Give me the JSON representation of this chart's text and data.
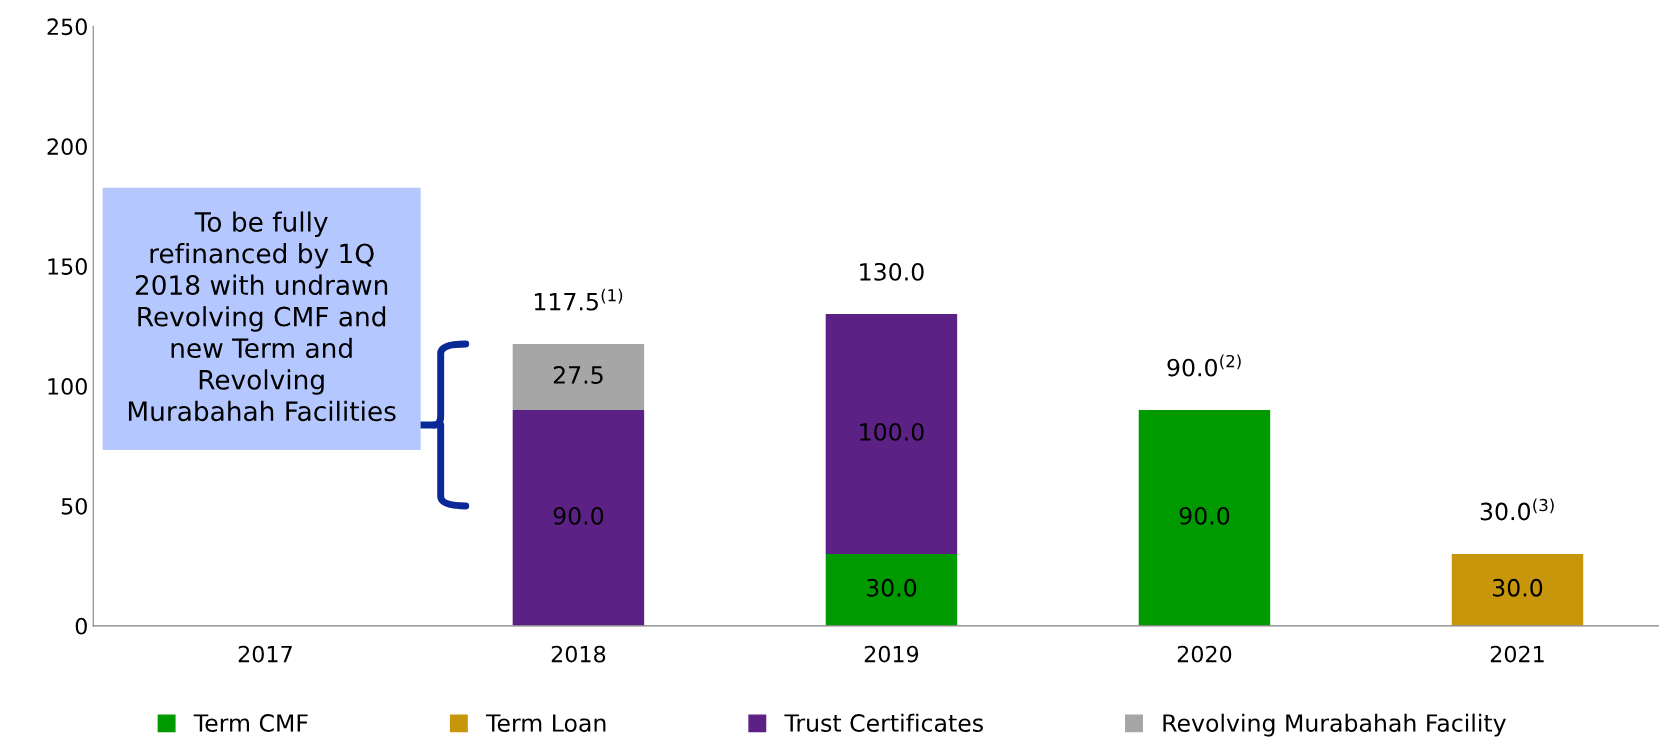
{
  "chart_data": {
    "type": "bar",
    "stacked": true,
    "categories": [
      "2017",
      "2018",
      "2019",
      "2020",
      "2021"
    ],
    "series": [
      {
        "name": "Term CMF",
        "color": "#009a00",
        "values": [
          null,
          null,
          30,
          90,
          null
        ],
        "value_labels": [
          null,
          null,
          "30.0",
          "90.0",
          null
        ]
      },
      {
        "name": "Term Loan",
        "color": "#c8960a",
        "values": [
          null,
          null,
          null,
          null,
          30
        ],
        "value_labels": [
          null,
          null,
          null,
          null,
          "30.0"
        ]
      },
      {
        "name": "Trust Certificates",
        "color": "#5c2184",
        "values": [
          null,
          90,
          100,
          null,
          null
        ],
        "value_labels": [
          null,
          "90.0",
          "100.0",
          null,
          null
        ]
      },
      {
        "name": "Revolving Murabahah Facility",
        "color": "#a6a6a6",
        "values": [
          null,
          27.5,
          null,
          null,
          null
        ],
        "value_labels": [
          null,
          "27.5",
          null,
          null,
          null
        ]
      }
    ],
    "totals": [
      null,
      "117.5$^{(1)}$",
      "130.0",
      "90.0$^{(2)}$",
      "30.0$^{(3)}$"
    ],
    "ylim": [
      0,
      250
    ],
    "yticks": [
      0,
      50,
      100,
      150,
      200,
      250
    ],
    "annotations": [
      "To be fully refinanced by 1Q 2018 with undrawn Revolving CMF and new Term and Revolving Murabahah Facilities"
    ],
    "grid": false,
    "legend": "bottom"
  }
}
